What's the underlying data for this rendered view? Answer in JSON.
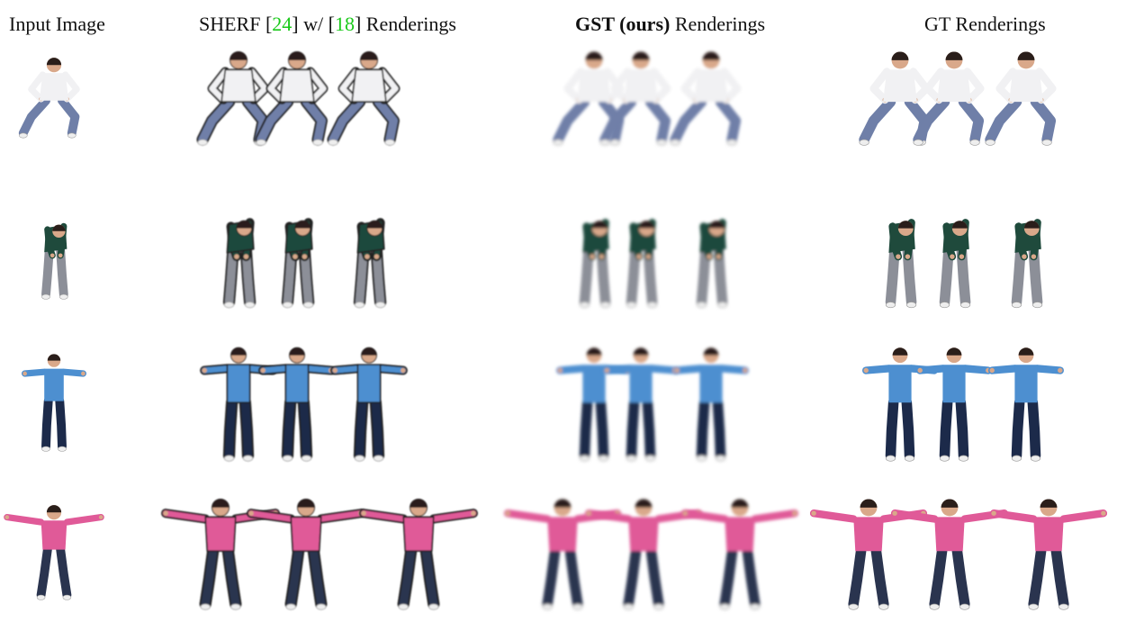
{
  "headers": {
    "input": "Input Image",
    "sherf": {
      "name": "SHERF [",
      "ref1": "24",
      "mid": "] w/ [",
      "ref2": "18",
      "end": "] Renderings"
    },
    "gst": {
      "bold": "GST (ours)",
      "rest": " Renderings"
    },
    "gt": "GT Renderings"
  },
  "colors": {
    "row1_shirt": "#f1f1f3",
    "row1_pants": "#6f7fa8",
    "row2_shirt": "#1f4a3c",
    "row2_pants": "#8c8f98",
    "row3_shirt": "#4d8fd0",
    "row3_pants": "#1c2a4a",
    "row4_shirt": "#e05a98",
    "row4_pants": "#2a344f",
    "skin": "#d9a88a",
    "hair": "#2a1e1a",
    "ref_green": "#18c918"
  },
  "rows": [
    {
      "label": "row-1-person",
      "pose": "squat"
    },
    {
      "label": "row-2-person",
      "pose": "bent"
    },
    {
      "label": "row-3-person",
      "pose": "arms-forward"
    },
    {
      "label": "row-4-person",
      "pose": "t-pose"
    }
  ]
}
